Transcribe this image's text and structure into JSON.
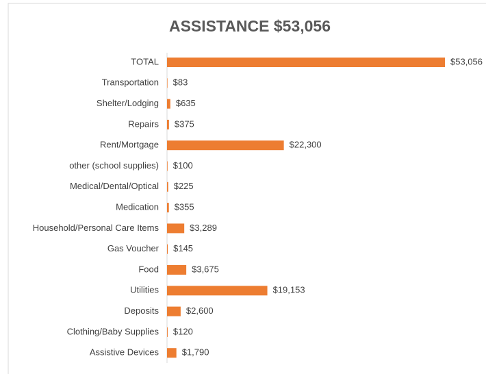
{
  "chart_data": {
    "type": "bar",
    "orientation": "horizontal",
    "title": "ASSISTANCE $53,056",
    "categories": [
      "TOTAL",
      "Transportation",
      "Shelter/Lodging",
      "Repairs",
      "Rent/Mortgage",
      "other (school supplies)",
      "Medical/Dental/Optical",
      "Medication",
      "Household/Personal Care Items",
      "Gas Voucher",
      "Food",
      "Utilities",
      "Deposits",
      "Clothing/Baby Supplies",
      "Assistive Devices"
    ],
    "values": [
      53056,
      83,
      635,
      375,
      22300,
      100,
      225,
      355,
      3289,
      145,
      3675,
      19153,
      2600,
      120,
      1790
    ],
    "value_labels": [
      "$53,056",
      "$83",
      "$635",
      "$375",
      "$22,300",
      "$100",
      "$225",
      "$355",
      "$3,289",
      "$145",
      "$3,675",
      "$19,153",
      "$2,600",
      "$120",
      "$1,790"
    ],
    "color": "#ed7d31"
  }
}
